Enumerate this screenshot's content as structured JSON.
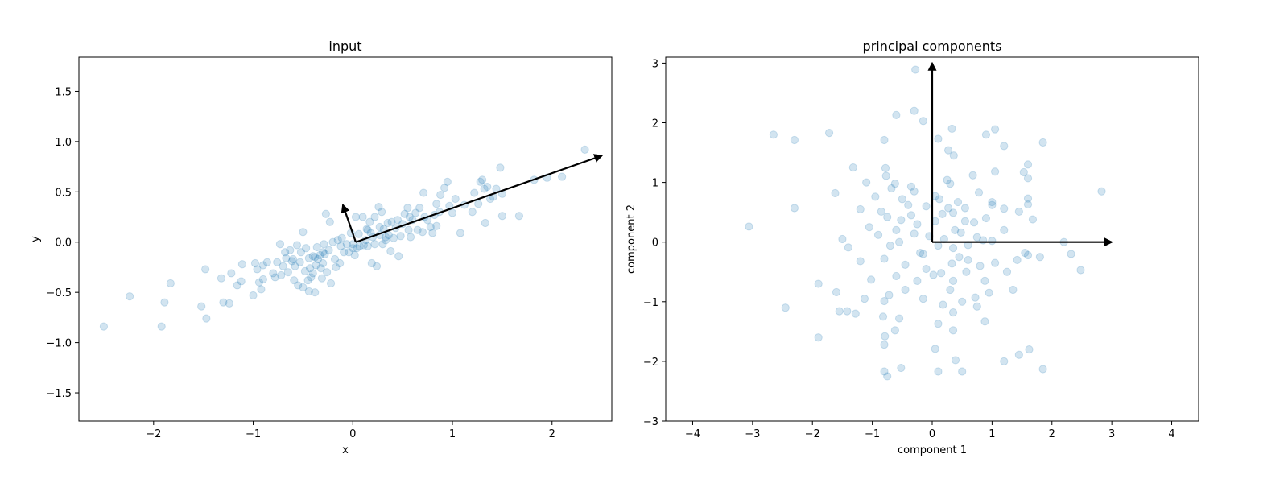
{
  "chart_data": [
    {
      "type": "scatter",
      "title": "input",
      "xlabel": "x",
      "ylabel": "y",
      "xlim": [
        -2.75,
        2.6
      ],
      "ylim": [
        -1.78,
        1.84
      ],
      "xticks": [
        -2,
        -1,
        0,
        1,
        2
      ],
      "yticks": [
        -1.5,
        -1.0,
        -0.5,
        0.0,
        0.5,
        1.0,
        1.5
      ],
      "xtick_labels": [
        "−2",
        "−1",
        "0",
        "1",
        "2"
      ],
      "ytick_labels": [
        "−1.5",
        "−1.0",
        "−0.5",
        "0.0",
        "0.5",
        "1.0",
        "1.5"
      ],
      "point_color": "#1f77b4",
      "point_alpha": 0.2,
      "vectors": [
        {
          "from": [
            0.03,
            0.0
          ],
          "to": [
            2.5,
            0.86
          ]
        },
        {
          "from": [
            0.03,
            0.0
          ],
          "to": [
            -0.1,
            0.37
          ]
        }
      ],
      "points": [
        [
          -2.5,
          -0.84
        ],
        [
          -2.24,
          -0.54
        ],
        [
          -1.92,
          -0.84
        ],
        [
          -1.89,
          -0.6
        ],
        [
          -1.83,
          -0.41
        ],
        [
          -1.52,
          -0.64
        ],
        [
          -1.48,
          -0.27
        ],
        [
          -1.47,
          -0.76
        ],
        [
          -1.32,
          -0.36
        ],
        [
          -1.3,
          -0.6
        ],
        [
          -1.24,
          -0.61
        ],
        [
          -1.22,
          -0.31
        ],
        [
          -1.16,
          -0.43
        ],
        [
          -1.12,
          -0.39
        ],
        [
          -1.11,
          -0.22
        ],
        [
          -1.0,
          -0.53
        ],
        [
          -0.98,
          -0.21
        ],
        [
          -0.96,
          -0.27
        ],
        [
          -0.94,
          -0.4
        ],
        [
          -0.92,
          -0.47
        ],
        [
          -0.9,
          -0.23
        ],
        [
          -0.9,
          -0.37
        ],
        [
          -0.86,
          -0.2
        ],
        [
          -0.8,
          -0.31
        ],
        [
          -0.78,
          -0.35
        ],
        [
          -0.76,
          -0.2
        ],
        [
          -0.73,
          -0.02
        ],
        [
          -0.72,
          -0.33
        ],
        [
          -0.7,
          -0.24
        ],
        [
          -0.68,
          -0.1
        ],
        [
          -0.67,
          -0.16
        ],
        [
          -0.65,
          -0.3
        ],
        [
          -0.63,
          -0.08
        ],
        [
          -0.6,
          -0.17
        ],
        [
          -0.59,
          -0.38
        ],
        [
          -0.58,
          -0.24
        ],
        [
          -0.56,
          -0.03
        ],
        [
          -0.55,
          -0.43
        ],
        [
          -0.53,
          -0.2
        ],
        [
          -0.52,
          -0.1
        ],
        [
          -0.5,
          -0.45
        ],
        [
          -0.5,
          0.1
        ],
        [
          -0.48,
          -0.29
        ],
        [
          -0.47,
          -0.06
        ],
        [
          -0.45,
          -0.38
        ],
        [
          -0.44,
          -0.49
        ],
        [
          -0.43,
          -0.26
        ],
        [
          -0.42,
          -0.35
        ],
        [
          -0.4,
          -0.14
        ],
        [
          -0.4,
          -0.31
        ],
        [
          -0.38,
          -0.15
        ],
        [
          -0.38,
          -0.5
        ],
        [
          -0.37,
          -0.23
        ],
        [
          -0.36,
          -0.05
        ],
        [
          -0.35,
          -0.17
        ],
        [
          -0.33,
          -0.13
        ],
        [
          -0.32,
          -0.26
        ],
        [
          -0.31,
          -0.36
        ],
        [
          -0.3,
          -0.21
        ],
        [
          -0.29,
          -0.02
        ],
        [
          -0.28,
          -0.12
        ],
        [
          -0.27,
          0.28
        ],
        [
          -0.26,
          -0.3
        ],
        [
          -0.24,
          -0.08
        ],
        [
          -0.23,
          0.2
        ],
        [
          -0.22,
          -0.41
        ],
        [
          -0.2,
          0.0
        ],
        [
          -0.18,
          -0.17
        ],
        [
          -0.17,
          -0.25
        ],
        [
          -0.15,
          0.02
        ],
        [
          -0.13,
          -0.21
        ],
        [
          -0.11,
          0.04
        ],
        [
          -0.09,
          -0.1
        ],
        [
          -0.06,
          -0.02
        ],
        [
          -0.04,
          -0.1
        ],
        [
          -0.02,
          0.09
        ],
        [
          0.0,
          -0.02
        ],
        [
          0.02,
          -0.13
        ],
        [
          0.03,
          0.25
        ],
        [
          0.04,
          -0.06
        ],
        [
          0.06,
          0.08
        ],
        [
          0.07,
          -0.04
        ],
        [
          0.1,
          0.25
        ],
        [
          0.11,
          -0.03
        ],
        [
          0.13,
          0.02
        ],
        [
          0.14,
          0.13
        ],
        [
          0.15,
          -0.04
        ],
        [
          0.17,
          0.2
        ],
        [
          0.18,
          0.09
        ],
        [
          0.19,
          -0.21
        ],
        [
          0.2,
          0.05
        ],
        [
          0.22,
          0.25
        ],
        [
          0.24,
          -0.24
        ],
        [
          0.26,
          0.35
        ],
        [
          0.27,
          0.07
        ],
        [
          0.29,
          0.3
        ],
        [
          0.3,
          -0.02
        ],
        [
          0.31,
          0.13
        ],
        [
          0.33,
          0.02
        ],
        [
          0.35,
          0.19
        ],
        [
          0.36,
          0.07
        ],
        [
          0.38,
          -0.09
        ],
        [
          0.39,
          0.2
        ],
        [
          0.41,
          0.04
        ],
        [
          0.43,
          0.14
        ],
        [
          0.45,
          0.22
        ],
        [
          0.46,
          -0.14
        ],
        [
          0.48,
          0.06
        ],
        [
          0.5,
          0.18
        ],
        [
          0.52,
          0.28
        ],
        [
          0.55,
          0.34
        ],
        [
          0.57,
          0.25
        ],
        [
          0.58,
          0.05
        ],
        [
          0.6,
          0.22
        ],
        [
          0.63,
          0.29
        ],
        [
          0.65,
          0.12
        ],
        [
          0.67,
          0.34
        ],
        [
          0.7,
          0.1
        ],
        [
          0.71,
          0.49
        ],
        [
          0.72,
          0.25
        ],
        [
          0.75,
          0.22
        ],
        [
          0.78,
          0.15
        ],
        [
          0.8,
          0.09
        ],
        [
          0.82,
          0.27
        ],
        [
          0.84,
          0.38
        ],
        [
          0.87,
          0.3
        ],
        [
          0.88,
          0.47
        ],
        [
          0.92,
          0.54
        ],
        [
          0.95,
          0.6
        ],
        [
          0.97,
          0.36
        ],
        [
          1.0,
          0.29
        ],
        [
          1.03,
          0.43
        ],
        [
          1.08,
          0.09
        ],
        [
          1.12,
          0.37
        ],
        [
          1.2,
          0.3
        ],
        [
          1.22,
          0.49
        ],
        [
          1.26,
          0.38
        ],
        [
          1.28,
          0.6
        ],
        [
          1.3,
          0.62
        ],
        [
          1.32,
          0.53
        ],
        [
          1.33,
          0.19
        ],
        [
          1.35,
          0.55
        ],
        [
          1.38,
          0.43
        ],
        [
          1.41,
          0.45
        ],
        [
          1.44,
          0.53
        ],
        [
          1.48,
          0.74
        ],
        [
          1.5,
          0.26
        ],
        [
          1.5,
          0.48
        ],
        [
          1.67,
          0.26
        ],
        [
          1.82,
          0.62
        ],
        [
          1.95,
          0.64
        ],
        [
          2.1,
          0.65
        ],
        [
          2.33,
          0.92
        ],
        [
          -0.61,
          -0.19
        ],
        [
          0.27,
          0.15
        ],
        [
          0.15,
          0.12
        ],
        [
          0.0,
          -0.06
        ],
        [
          0.33,
          0.05
        ],
        [
          -0.12,
          -0.04
        ],
        [
          0.84,
          0.16
        ],
        [
          -0.44,
          -0.16
        ],
        [
          0.22,
          -0.02
        ],
        [
          0.56,
          0.12
        ],
        [
          -0.3,
          -0.1
        ]
      ]
    },
    {
      "type": "scatter",
      "title": "principal components",
      "xlabel": "component 1",
      "ylabel": "component 2",
      "xlim": [
        -4.45,
        4.45
      ],
      "ylim": [
        -3.0,
        3.1
      ],
      "xticks": [
        -4,
        -3,
        -2,
        -1,
        0,
        1,
        2,
        3,
        4
      ],
      "yticks": [
        -3,
        -2,
        -1,
        0,
        1,
        2,
        3
      ],
      "xtick_labels": [
        "−4",
        "−3",
        "−2",
        "−1",
        "0",
        "1",
        "2",
        "3",
        "4"
      ],
      "ytick_labels": [
        "−3",
        "−2",
        "−1",
        "0",
        "1",
        "2",
        "3"
      ],
      "point_color": "#1f77b4",
      "point_alpha": 0.2,
      "vectors": [
        {
          "from": [
            0.0,
            0.0
          ],
          "to": [
            3.0,
            0.0
          ]
        },
        {
          "from": [
            0.0,
            0.0
          ],
          "to": [
            0.0,
            3.0
          ]
        }
      ],
      "points": [
        [
          -0.28,
          2.89
        ],
        [
          -0.3,
          2.2
        ],
        [
          -0.6,
          2.13
        ],
        [
          -0.15,
          2.03
        ],
        [
          0.33,
          1.9
        ],
        [
          1.05,
          1.89
        ],
        [
          -2.65,
          1.8
        ],
        [
          -1.72,
          1.83
        ],
        [
          0.9,
          1.8
        ],
        [
          -2.3,
          1.71
        ],
        [
          -0.8,
          1.71
        ],
        [
          0.1,
          1.73
        ],
        [
          1.85,
          1.67
        ],
        [
          1.2,
          1.61
        ],
        [
          0.27,
          1.54
        ],
        [
          0.36,
          1.45
        ],
        [
          1.6,
          1.3
        ],
        [
          -1.32,
          1.25
        ],
        [
          -0.78,
          1.24
        ],
        [
          1.53,
          1.17
        ],
        [
          1.05,
          1.18
        ],
        [
          0.68,
          1.12
        ],
        [
          -0.77,
          1.11
        ],
        [
          1.6,
          1.07
        ],
        [
          -1.1,
          1.0
        ],
        [
          -0.62,
          0.98
        ],
        [
          0.25,
          1.04
        ],
        [
          -0.68,
          0.9
        ],
        [
          -0.35,
          0.93
        ],
        [
          0.3,
          0.98
        ],
        [
          -0.3,
          0.85
        ],
        [
          0.78,
          0.83
        ],
        [
          -1.62,
          0.82
        ],
        [
          -0.95,
          0.76
        ],
        [
          -0.5,
          0.72
        ],
        [
          0.05,
          0.77
        ],
        [
          0.43,
          0.67
        ],
        [
          1.0,
          0.62
        ],
        [
          1.6,
          0.73
        ],
        [
          2.83,
          0.85
        ],
        [
          -2.3,
          0.57
        ],
        [
          -1.2,
          0.55
        ],
        [
          -0.85,
          0.51
        ],
        [
          -0.4,
          0.62
        ],
        [
          0.27,
          0.57
        ],
        [
          0.55,
          0.57
        ],
        [
          1.6,
          0.63
        ],
        [
          1.0,
          0.67
        ],
        [
          -0.1,
          0.6
        ],
        [
          0.17,
          0.47
        ],
        [
          0.35,
          0.49
        ],
        [
          0.7,
          0.33
        ],
        [
          1.45,
          0.51
        ],
        [
          1.2,
          0.56
        ],
        [
          -3.06,
          0.26
        ],
        [
          -1.5,
          0.05
        ],
        [
          -0.75,
          0.42
        ],
        [
          -0.52,
          0.37
        ],
        [
          0.05,
          0.35
        ],
        [
          0.85,
          0.03
        ],
        [
          1.68,
          0.38
        ],
        [
          -0.9,
          0.12
        ],
        [
          -0.6,
          0.2
        ],
        [
          -0.3,
          0.14
        ],
        [
          0.48,
          0.16
        ],
        [
          0.75,
          0.08
        ],
        [
          1.2,
          0.2
        ],
        [
          -1.4,
          -0.09
        ],
        [
          -0.7,
          -0.06
        ],
        [
          -0.55,
          0.0
        ],
        [
          -0.2,
          -0.18
        ],
        [
          0.1,
          -0.06
        ],
        [
          0.35,
          -0.1
        ],
        [
          0.6,
          -0.05
        ],
        [
          1.0,
          0.02
        ],
        [
          1.55,
          -0.18
        ],
        [
          2.2,
          0.0
        ],
        [
          2.32,
          -0.2
        ],
        [
          -1.2,
          -0.32
        ],
        [
          -0.8,
          -0.28
        ],
        [
          -0.45,
          -0.38
        ],
        [
          -0.1,
          -0.45
        ],
        [
          0.15,
          -0.52
        ],
        [
          0.33,
          -0.36
        ],
        [
          0.8,
          -0.4
        ],
        [
          1.05,
          -0.35
        ],
        [
          1.42,
          -0.3
        ],
        [
          1.8,
          -0.25
        ],
        [
          2.48,
          -0.47
        ],
        [
          -1.02,
          -0.63
        ],
        [
          -0.6,
          -0.57
        ],
        [
          -0.25,
          -0.65
        ],
        [
          0.02,
          -0.55
        ],
        [
          0.35,
          -0.65
        ],
        [
          0.57,
          -0.5
        ],
        [
          0.88,
          -0.65
        ],
        [
          1.25,
          -0.5
        ],
        [
          1.6,
          -0.22
        ],
        [
          -1.9,
          -0.7
        ],
        [
          -1.6,
          -0.84
        ],
        [
          -0.72,
          -0.89
        ],
        [
          -0.45,
          -0.8
        ],
        [
          0.3,
          -0.8
        ],
        [
          0.72,
          -0.93
        ],
        [
          1.35,
          -0.8
        ],
        [
          -2.45,
          -1.1
        ],
        [
          -1.55,
          -1.16
        ],
        [
          -1.42,
          -1.16
        ],
        [
          -1.13,
          -0.95
        ],
        [
          -0.8,
          -0.99
        ],
        [
          -0.15,
          -0.95
        ],
        [
          0.18,
          -1.05
        ],
        [
          0.5,
          -1.0
        ],
        [
          0.95,
          -0.85
        ],
        [
          -1.28,
          -1.2
        ],
        [
          -0.82,
          -1.25
        ],
        [
          -0.55,
          -1.28
        ],
        [
          0.35,
          -1.18
        ],
        [
          0.75,
          -1.08
        ],
        [
          -0.62,
          -1.48
        ],
        [
          0.1,
          -1.37
        ],
        [
          0.35,
          -1.48
        ],
        [
          0.88,
          -1.33
        ],
        [
          -1.9,
          -1.6
        ],
        [
          -0.79,
          -1.58
        ],
        [
          -0.8,
          -1.72
        ],
        [
          0.05,
          -1.79
        ],
        [
          1.45,
          -1.89
        ],
        [
          1.62,
          -1.8
        ],
        [
          0.39,
          -1.98
        ],
        [
          1.2,
          -2.0
        ],
        [
          -0.8,
          -2.17
        ],
        [
          -0.75,
          -2.25
        ],
        [
          -0.52,
          -2.11
        ],
        [
          0.1,
          -2.17
        ],
        [
          0.5,
          -2.17
        ],
        [
          1.85,
          -2.13
        ],
        [
          0.38,
          0.2
        ],
        [
          -0.05,
          0.1
        ],
        [
          0.55,
          0.35
        ],
        [
          -0.15,
          -0.2
        ],
        [
          0.2,
          0.05
        ],
        [
          0.6,
          -0.3
        ],
        [
          -0.35,
          0.45
        ],
        [
          0.9,
          0.4
        ],
        [
          -1.05,
          0.25
        ],
        [
          0.45,
          -0.25
        ],
        [
          -0.25,
          0.3
        ],
        [
          0.12,
          0.72
        ]
      ]
    }
  ]
}
